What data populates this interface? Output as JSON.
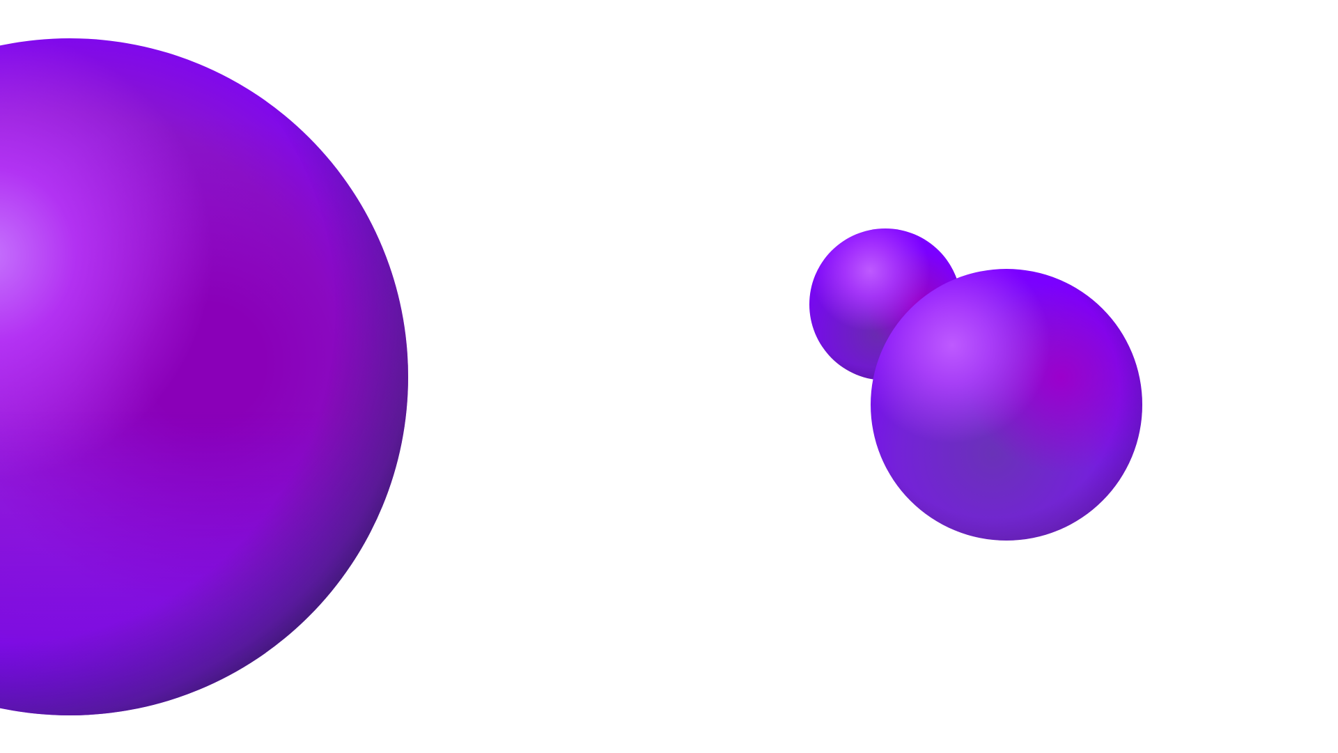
{
  "scene": {
    "background_color": "#ffffff",
    "spheres": [
      {
        "name": "large-sphere",
        "highlight_color": "#c27bff",
        "mid_color": "#8a00b8",
        "rim_color": "#7a00ff",
        "shadow_color": "#3c2a5a"
      },
      {
        "name": "small-sphere",
        "highlight_color": "#b75aff",
        "mid_color": "#9a00c8",
        "rim_color": "#7a00ff",
        "shadow_color": "#6a2ab0"
      },
      {
        "name": "medium-sphere",
        "highlight_color": "#be5aff",
        "mid_color": "#9b00cc",
        "rim_color": "#7a00ff",
        "shadow_color": "#6a32b8"
      }
    ]
  }
}
